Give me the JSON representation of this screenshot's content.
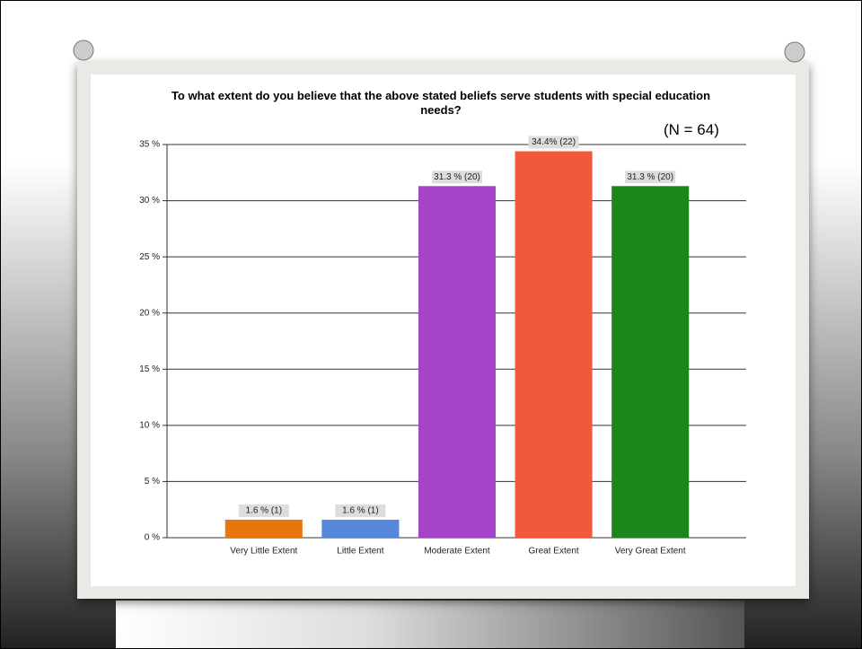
{
  "chart_data": {
    "type": "bar",
    "title": "To what extent do you believe that the above stated beliefs serve students with special education needs?",
    "annotation": "(N = 64)",
    "categories": [
      "Very Little Extent",
      "Little Extent",
      "Moderate Extent",
      "Great Extent",
      "Very Great Extent"
    ],
    "values": [
      1.6,
      1.6,
      31.3,
      34.4,
      31.3
    ],
    "value_labels": [
      "1.6 % (1)",
      "1.6 % (1)",
      "31.3 % (20)",
      "34.4% (22)",
      "31.3 % (20)"
    ],
    "colors": [
      "#e8760e",
      "#5588dd",
      "#a444c8",
      "#f2583a",
      "#1c861c"
    ],
    "ylim": [
      0,
      35
    ],
    "yticks": [
      {
        "value": 0,
        "label": "0 %"
      },
      {
        "value": 5,
        "label": "5 %"
      },
      {
        "value": 10,
        "label": "10 %"
      },
      {
        "value": 15,
        "label": "15 %"
      },
      {
        "value": 20,
        "label": "20 %"
      },
      {
        "value": 25,
        "label": "25 %"
      },
      {
        "value": 30,
        "label": "30 %"
      },
      {
        "value": 35,
        "label": "35 %"
      }
    ],
    "grid": true
  }
}
